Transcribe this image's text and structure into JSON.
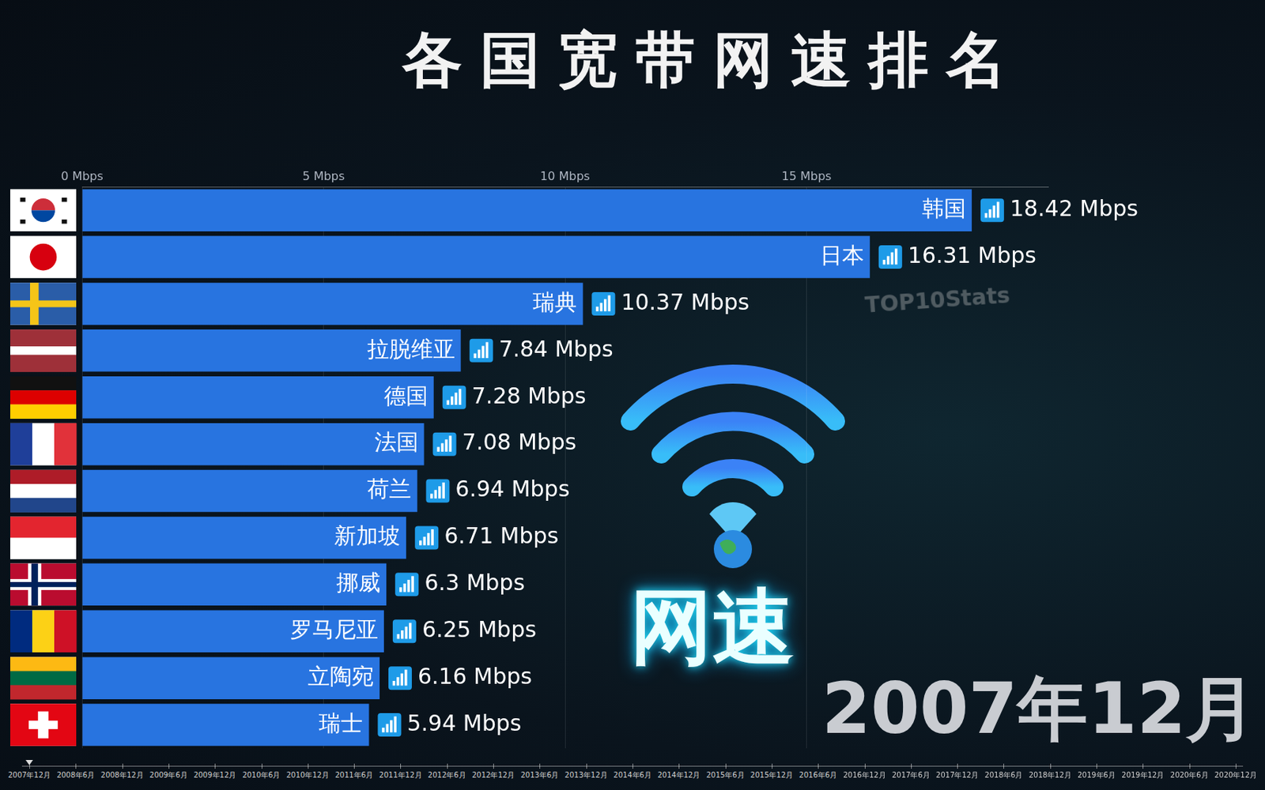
{
  "chart_data": {
    "type": "bar",
    "title": "各国宽带网速排名",
    "orientation": "horizontal",
    "categories": [
      "韩国",
      "日本",
      "瑞典",
      "拉脱维亚",
      "德国",
      "法国",
      "荷兰",
      "新加坡",
      "挪威",
      "罗马尼亚",
      "立陶宛",
      "瑞士"
    ],
    "values": [
      18.42,
      16.31,
      10.37,
      7.84,
      7.28,
      7.08,
      6.94,
      6.71,
      6.3,
      6.25,
      6.16,
      5.94
    ],
    "value_labels": [
      "18.42 Mbps",
      "16.31 Mbps",
      "10.37 Mbps",
      "7.84 Mbps",
      "7.28 Mbps",
      "7.08 Mbps",
      "6.94 Mbps",
      "6.71 Mbps",
      "6.3 Mbps",
      "6.25 Mbps",
      "6.16 Mbps",
      "5.94 Mbps"
    ],
    "data_labels": true,
    "color": "#2874e0",
    "xlim": [
      0,
      20
    ],
    "xticks": [
      {
        "value": 0,
        "label": "0 Mbps"
      },
      {
        "value": 5,
        "label": "5 Mbps"
      },
      {
        "value": 10,
        "label": "10 Mbps"
      },
      {
        "value": 15,
        "label": "15 Mbps"
      }
    ],
    "grid": true,
    "tick_labels": "x",
    "annotations": {
      "watermark": "TOP10Stats",
      "badge": "网速",
      "date": "2007年12月"
    },
    "timeline": [
      "2007年12月",
      "2008年6月",
      "2008年12月",
      "2009年6月",
      "2009年12月",
      "2010年6月",
      "2010年12月",
      "2011年6月",
      "2011年12月",
      "2012年6月",
      "2012年12月",
      "2013年6月",
      "2013年12月",
      "2014年6月",
      "2014年12月",
      "2015年6月",
      "2015年12月",
      "2016年6月",
      "2016年12月",
      "2017年6月",
      "2017年12月",
      "2018年6月",
      "2018年12月",
      "2019年6月",
      "2019年12月",
      "2020年6月",
      "2020年12月"
    ]
  }
}
